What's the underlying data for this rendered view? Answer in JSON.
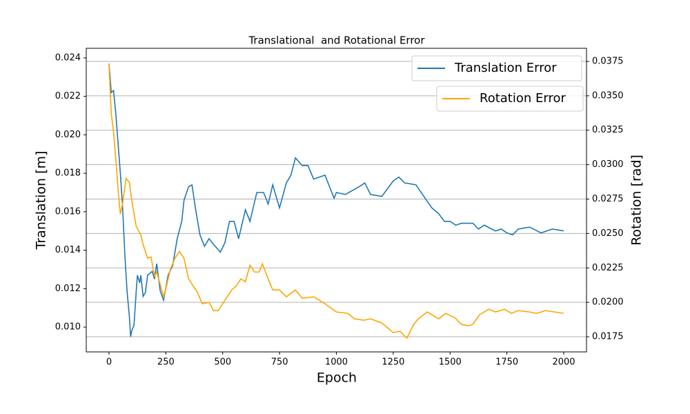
{
  "chart_data": {
    "type": "line",
    "title": "Translational  and Rotational Error",
    "xlabel": "Epoch",
    "ylabel": "Translation [m]",
    "y2label": "Rotation [rad]",
    "xlim": [
      -100,
      2100
    ],
    "xticks": [
      0,
      250,
      500,
      750,
      1000,
      1250,
      1500,
      1750,
      2000
    ],
    "ylim": [
      0.00871,
      0.0245
    ],
    "yticks": [
      {
        "value": 0.01,
        "label": "0.010"
      },
      0.012,
      0.014,
      0.016,
      0.018,
      {
        "value": 0.02,
        "label": "0.020"
      },
      0.022,
      0.024
    ],
    "y2lim": [
      0.0164,
      0.03845
    ],
    "y2ticks": [
      0.0175,
      {
        "value": 0.02,
        "label": "0.0200"
      },
      0.0225,
      {
        "value": 0.025,
        "label": "0.0250"
      },
      0.0275,
      {
        "value": 0.03,
        "label": "0.0300"
      },
      0.0325,
      {
        "value": 0.035,
        "label": "0.0350"
      },
      0.0375
    ],
    "grid": "y2",
    "legend": "upper right",
    "series": [
      {
        "name": "Translation Error",
        "color": "#1f77b4",
        "x": [
          0,
          10,
          20,
          30,
          50,
          60,
          70,
          80,
          90,
          95,
          100,
          110,
          120,
          125,
          135,
          140,
          150,
          160,
          170,
          190,
          200,
          210,
          225,
          240,
          260,
          280,
          300,
          320,
          330,
          350,
          365,
          380,
          400,
          420,
          440,
          460,
          490,
          510,
          530,
          550,
          570,
          600,
          620,
          650,
          680,
          700,
          720,
          750,
          780,
          800,
          820,
          850,
          875,
          900,
          950,
          990,
          1000,
          1040,
          1100,
          1125,
          1150,
          1200,
          1250,
          1275,
          1300,
          1350,
          1390,
          1420,
          1450,
          1475,
          1500,
          1525,
          1550,
          1600,
          1625,
          1650,
          1700,
          1725,
          1750,
          1775,
          1800,
          1850,
          1900,
          1950,
          2000
        ],
        "values": [
          0.0237,
          0.0222,
          0.0223,
          0.0211,
          0.018,
          0.0162,
          0.0137,
          0.0118,
          0.0105,
          0.0095,
          0.0098,
          0.0101,
          0.0119,
          0.0127,
          0.0123,
          0.0127,
          0.0116,
          0.0118,
          0.0127,
          0.0129,
          0.0125,
          0.0133,
          0.0119,
          0.0114,
          0.0127,
          0.0132,
          0.0146,
          0.0155,
          0.0166,
          0.0173,
          0.0174,
          0.0162,
          0.0148,
          0.0142,
          0.0146,
          0.0143,
          0.0139,
          0.0144,
          0.0155,
          0.0155,
          0.0146,
          0.0161,
          0.0155,
          0.017,
          0.017,
          0.0164,
          0.0174,
          0.0162,
          0.0175,
          0.0179,
          0.0188,
          0.0184,
          0.0184,
          0.0177,
          0.0179,
          0.0167,
          0.017,
          0.0169,
          0.0173,
          0.0175,
          0.0169,
          0.0168,
          0.0176,
          0.0178,
          0.0175,
          0.0174,
          0.0167,
          0.0162,
          0.0159,
          0.0155,
          0.0155,
          0.0153,
          0.0154,
          0.0154,
          0.0151,
          0.0153,
          0.015,
          0.0151,
          0.0149,
          0.0148,
          0.0151,
          0.0152,
          0.0149,
          0.0151,
          0.015
        ]
      },
      {
        "name": "Rotation Error",
        "color": "#ffa500",
        "axis": "y2",
        "x": [
          0,
          10,
          20,
          30,
          40,
          50,
          60,
          70,
          75,
          90,
          100,
          120,
          140,
          150,
          170,
          185,
          200,
          210,
          225,
          240,
          250,
          270,
          290,
          310,
          330,
          350,
          370,
          390,
          410,
          440,
          460,
          480,
          500,
          520,
          540,
          560,
          580,
          600,
          620,
          640,
          660,
          675,
          700,
          720,
          750,
          780,
          820,
          850,
          900,
          950,
          1000,
          1050,
          1080,
          1120,
          1150,
          1200,
          1250,
          1280,
          1310,
          1340,
          1360,
          1400,
          1450,
          1480,
          1520,
          1550,
          1580,
          1600,
          1630,
          1670,
          1700,
          1740,
          1770,
          1800,
          1850,
          1880,
          1920,
          1960,
          2000
        ],
        "values": [
          0.0373,
          0.0337,
          0.0324,
          0.0304,
          0.0282,
          0.0264,
          0.0272,
          0.0284,
          0.029,
          0.0287,
          0.0274,
          0.0255,
          0.0249,
          0.0242,
          0.0232,
          0.0233,
          0.0219,
          0.0222,
          0.0213,
          0.0204,
          0.021,
          0.0224,
          0.0232,
          0.0237,
          0.0232,
          0.0217,
          0.0212,
          0.0207,
          0.0199,
          0.02,
          0.0194,
          0.0194,
          0.0199,
          0.0204,
          0.0209,
          0.0212,
          0.0217,
          0.0215,
          0.0227,
          0.0222,
          0.0222,
          0.0228,
          0.0217,
          0.0209,
          0.0209,
          0.0204,
          0.0209,
          0.0203,
          0.0204,
          0.0199,
          0.0193,
          0.0192,
          0.0188,
          0.0187,
          0.0188,
          0.0185,
          0.0178,
          0.0179,
          0.0174,
          0.0184,
          0.0188,
          0.0193,
          0.0188,
          0.0192,
          0.0189,
          0.0184,
          0.0183,
          0.0184,
          0.0191,
          0.0195,
          0.0193,
          0.0195,
          0.0192,
          0.0194,
          0.0193,
          0.0192,
          0.0194,
          0.0193,
          0.0192
        ]
      }
    ]
  }
}
